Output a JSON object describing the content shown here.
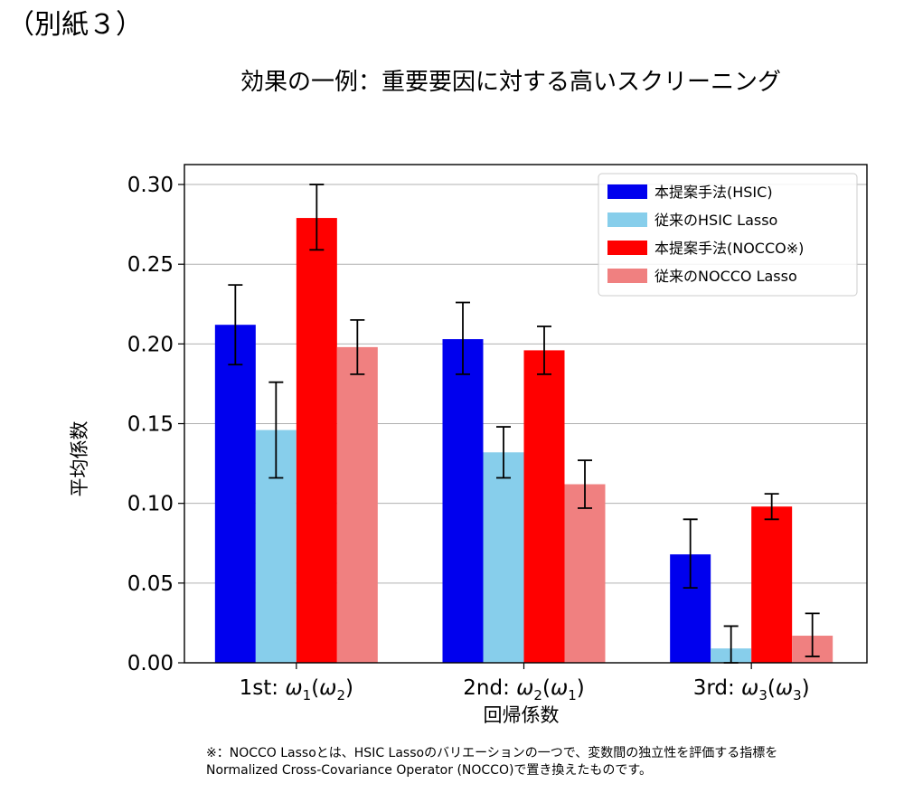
{
  "annex_label": "（別紙３）",
  "page_title": "効果の一例：重要要因に対する高いスクリーニング",
  "footnote": {
    "line1": "※：NOCCO Lassoとは、HSIC Lassoのバリエーションの一つで、変数間の独立性を評価する指標を",
    "line2": "Normalized Cross-Covariance Operator (NOCCO)で置き換えたものです。"
  },
  "chart_data": {
    "type": "bar",
    "xlabel": "回帰係数",
    "ylabel": "平均係数",
    "ylim": [
      0,
      0.3125
    ],
    "yticks": [
      "0.00",
      "0.05",
      "0.10",
      "0.15",
      "0.20",
      "0.25",
      "0.30"
    ],
    "grid": "horizontal",
    "legend_position": "top-right",
    "categories": [
      {
        "label": "1st: ",
        "w1": "ω",
        "s1": "1",
        "w2": "ω",
        "s2": "2"
      },
      {
        "label": "2nd: ",
        "w1": "ω",
        "s1": "2",
        "w2": "ω",
        "s2": "1"
      },
      {
        "label": "3rd: ",
        "w1": "ω",
        "s1": "3",
        "w2": "ω",
        "s2": "3"
      }
    ],
    "series": [
      {
        "name": "本提案手法(HSIC)",
        "color": "#0000ee",
        "values": [
          0.212,
          0.203,
          0.068
        ],
        "err_low": [
          0.187,
          0.181,
          0.047
        ],
        "err_high": [
          0.237,
          0.226,
          0.09
        ]
      },
      {
        "name": "従来のHSIC Lasso",
        "color": "#87ceeb",
        "values": [
          0.146,
          0.132,
          0.009
        ],
        "err_low": [
          0.116,
          0.116,
          0.0
        ],
        "err_high": [
          0.176,
          0.148,
          0.023
        ]
      },
      {
        "name": "本提案手法(NOCCO※)",
        "color": "#ff0000",
        "values": [
          0.279,
          0.196,
          0.098
        ],
        "err_low": [
          0.259,
          0.181,
          0.09
        ],
        "err_high": [
          0.3,
          0.211,
          0.106
        ]
      },
      {
        "name": "従来のNOCCO Lasso",
        "color": "#f08080",
        "values": [
          0.198,
          0.112,
          0.017
        ],
        "err_low": [
          0.181,
          0.097,
          0.004
        ],
        "err_high": [
          0.215,
          0.127,
          0.031
        ]
      }
    ]
  }
}
